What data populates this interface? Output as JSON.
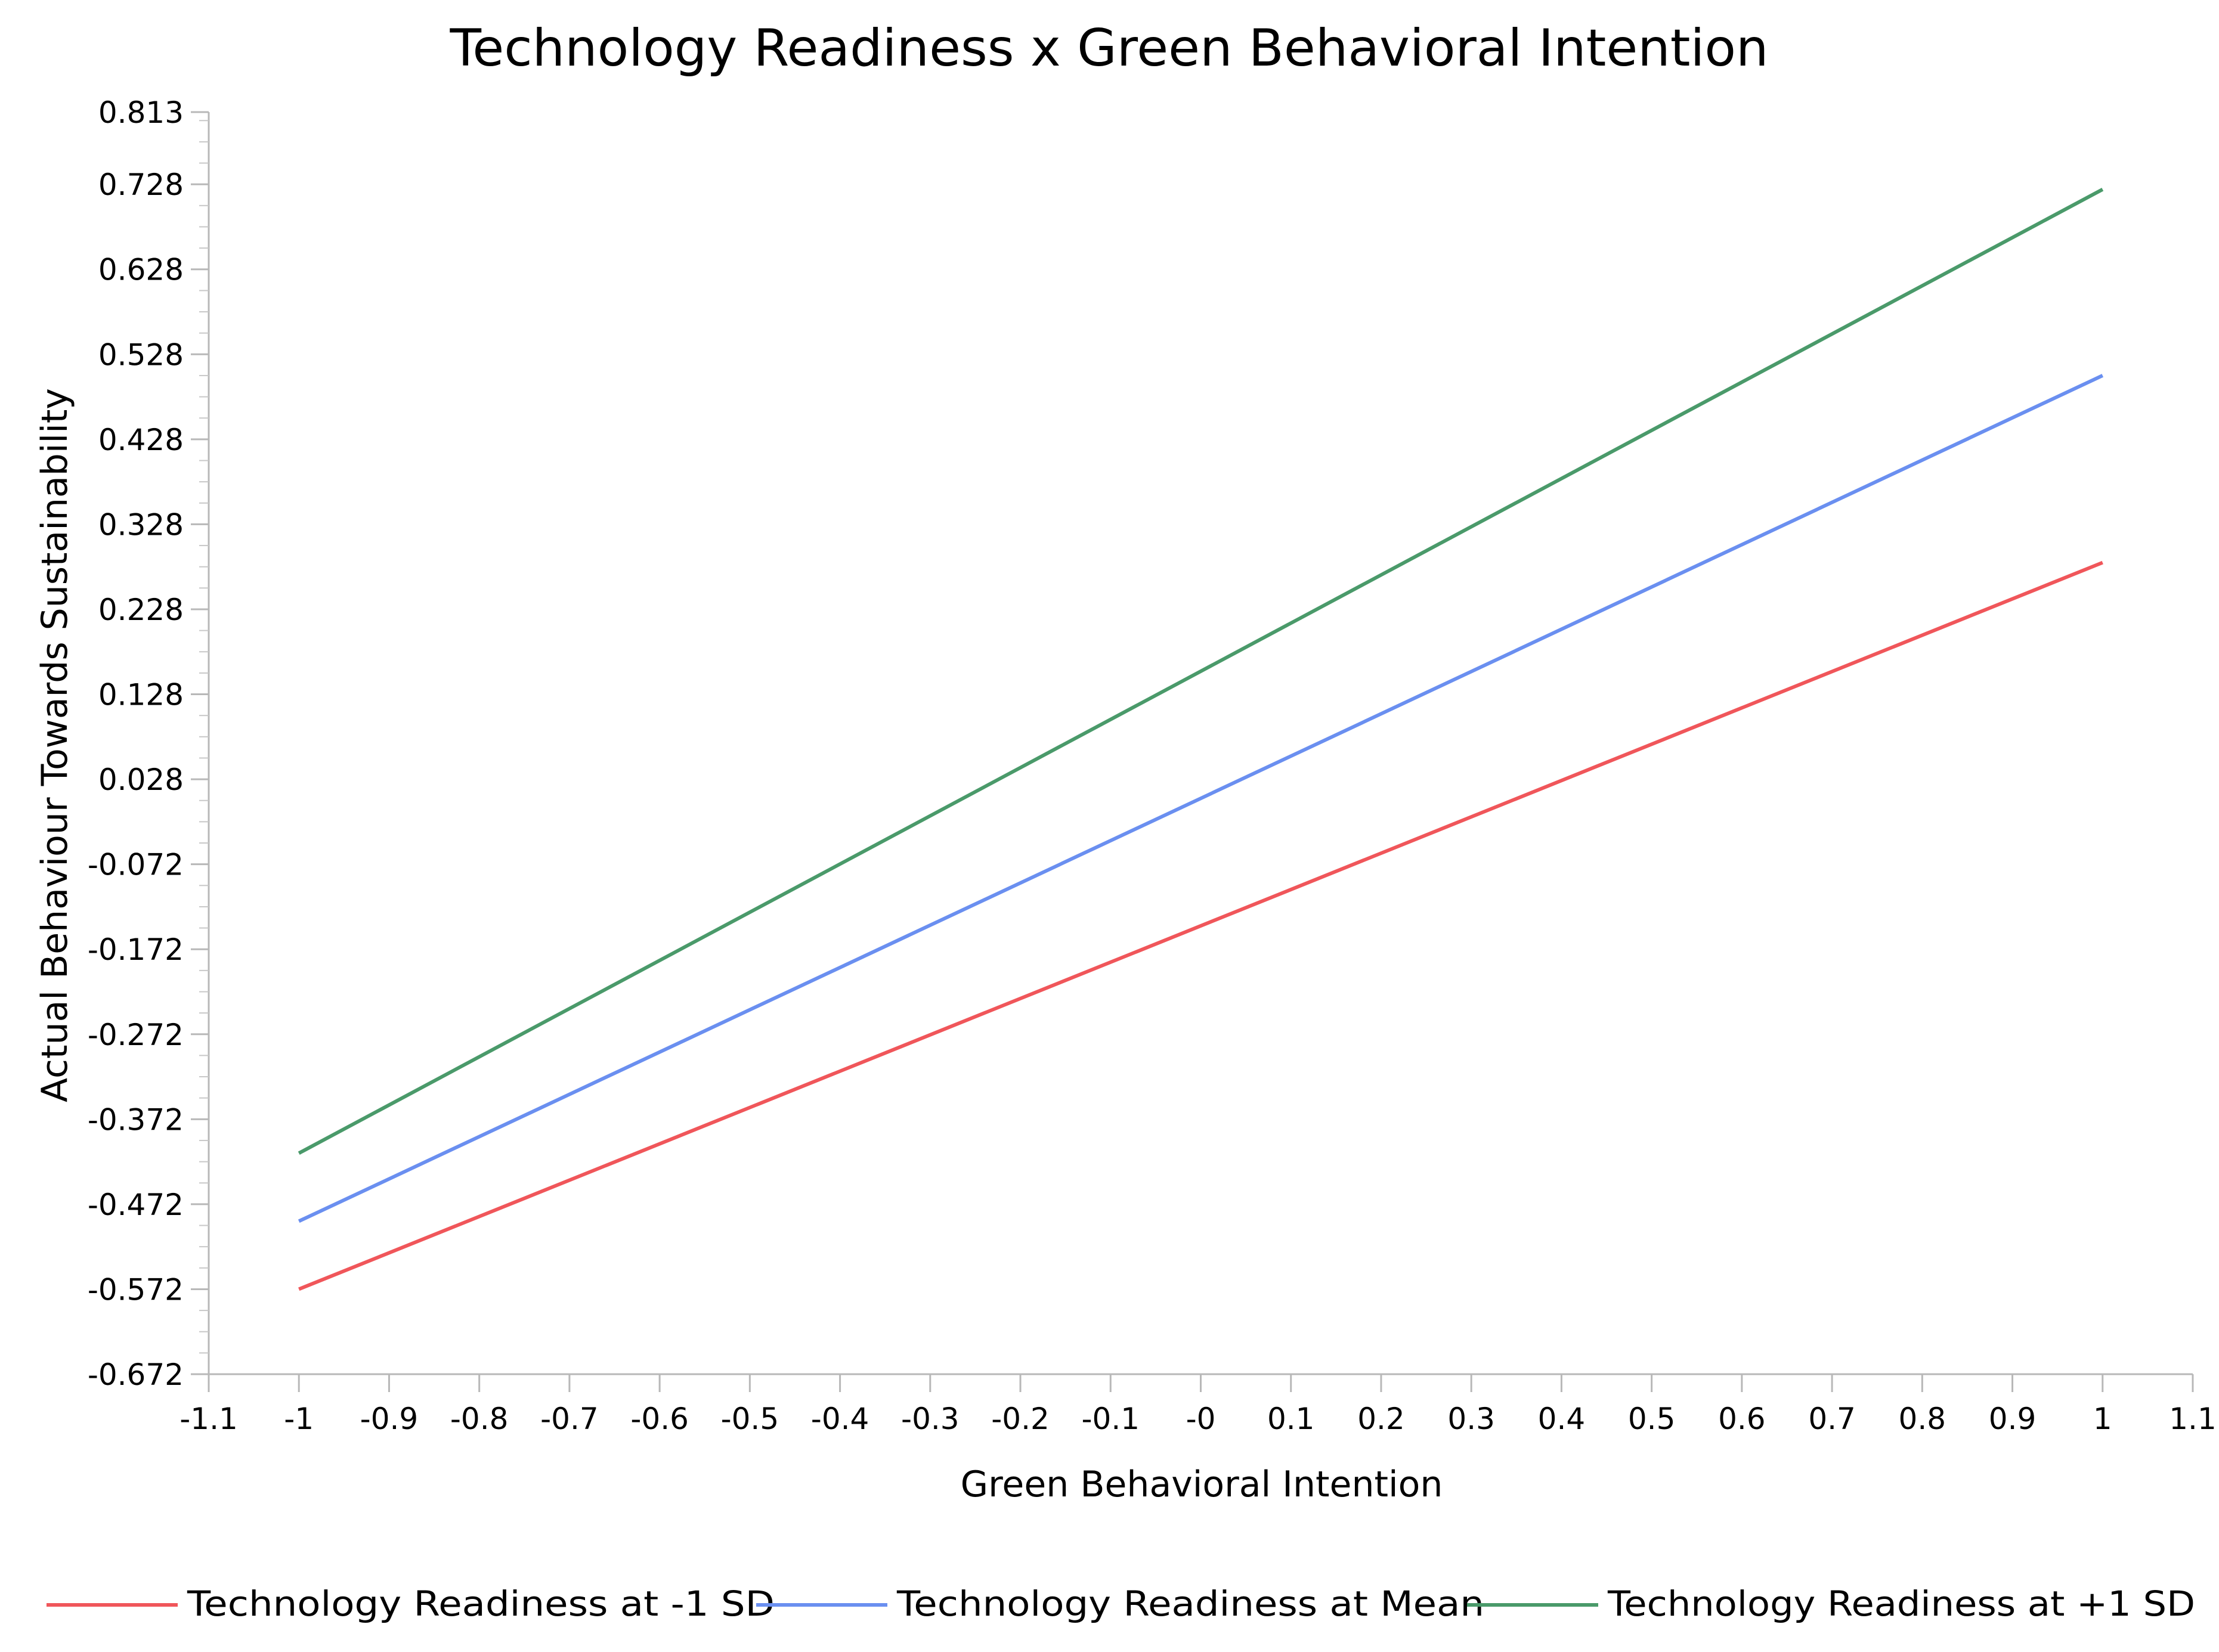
{
  "chart_data": {
    "type": "line",
    "title": "Technology Readiness x Green Behavioral Intention",
    "xlabel": "Green Behavioral Intention",
    "ylabel": "Actual Behaviour Towards Sustainability",
    "xlim": [
      -1.1,
      1.1
    ],
    "ylim": [
      -0.672,
      0.813
    ],
    "x_ticks": [
      -1.1,
      -1,
      -0.9,
      -0.8,
      -0.7,
      -0.6,
      -0.5,
      -0.4,
      -0.3,
      -0.2,
      -0.1,
      0,
      0.1,
      0.2,
      0.3,
      0.4,
      0.5,
      0.6,
      0.7,
      0.8,
      0.9,
      1,
      1.1
    ],
    "x_tick_labels": [
      "-1.1",
      "-1",
      "-0.9",
      "-0.8",
      "-0.7",
      "-0.6",
      "-0.5",
      "-0.4",
      "-0.3",
      "-0.2",
      "-0.1",
      "-0",
      "0.1",
      "0.2",
      "0.3",
      "0.4",
      "0.5",
      "0.6",
      "0.7",
      "0.8",
      "0.9",
      "1",
      "1.1"
    ],
    "y_ticks": [
      0.813,
      0.728,
      0.628,
      0.528,
      0.428,
      0.328,
      0.228,
      0.128,
      0.028,
      -0.072,
      -0.172,
      -0.272,
      -0.372,
      -0.472,
      -0.572,
      -0.672
    ],
    "y_tick_labels": [
      "0.813",
      "0.728",
      "0.628",
      "0.528",
      "0.428",
      "0.328",
      "0.228",
      "0.128",
      "0.028",
      "-0.072",
      "-0.172",
      "-0.272",
      "-0.372",
      "-0.472",
      "-0.572",
      "-0.672"
    ],
    "series": [
      {
        "name": "Technology Readiness at -1 SD",
        "color": "#f0565a",
        "x": [
          -1,
          1
        ],
        "y": [
          -0.572,
          0.283
        ]
      },
      {
        "name": "Technology Readiness at Mean",
        "color": "#6a8ff0",
        "x": [
          -1,
          1
        ],
        "y": [
          -0.492,
          0.503
        ]
      },
      {
        "name": "Technology Readiness at +1 SD",
        "color": "#4a9a6a",
        "x": [
          -1,
          1
        ],
        "y": [
          -0.412,
          0.722
        ]
      }
    ],
    "legend_position": "bottom",
    "grid": false
  }
}
